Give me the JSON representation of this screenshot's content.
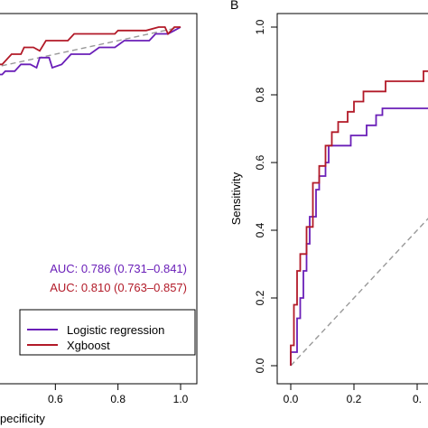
{
  "chart_data": [
    {
      "type": "line",
      "panel_label": "",
      "xlabel": "pecificity",
      "ylabel": "",
      "xlim_visible": [
        0.4,
        1.0
      ],
      "ylim": [
        0,
        1
      ],
      "x_reversed": false,
      "x_ticks": [
        {
          "value": 0.6,
          "label": "0.6"
        },
        {
          "value": 0.8,
          "label": "0.8"
        },
        {
          "value": 1.0,
          "label": "1.0"
        }
      ],
      "y_ticks": [],
      "diagonal": {
        "from": [
          0.4,
          0.4
        ],
        "to": [
          1.0,
          1.0
        ],
        "style": "dashed",
        "color": "#999999"
      },
      "series": [
        {
          "name": "Logistic regression",
          "color": "#6a1fb8",
          "points": [
            [
              0.4,
              0.84
            ],
            [
              0.41,
              0.86
            ],
            [
              0.43,
              0.86
            ],
            [
              0.44,
              0.87
            ],
            [
              0.47,
              0.87
            ],
            [
              0.49,
              0.89
            ],
            [
              0.52,
              0.89
            ],
            [
              0.54,
              0.88
            ],
            [
              0.55,
              0.91
            ],
            [
              0.58,
              0.91
            ],
            [
              0.59,
              0.88
            ],
            [
              0.62,
              0.89
            ],
            [
              0.65,
              0.92
            ],
            [
              0.71,
              0.92
            ],
            [
              0.74,
              0.94
            ],
            [
              0.79,
              0.94
            ],
            [
              0.82,
              0.96
            ],
            [
              0.9,
              0.96
            ],
            [
              0.92,
              0.98
            ],
            [
              0.96,
              0.98
            ],
            [
              0.98,
              0.99
            ],
            [
              1.0,
              1.0
            ]
          ]
        },
        {
          "name": "Xgboost",
          "color": "#b21a28",
          "points": [
            [
              0.4,
              0.89
            ],
            [
              0.43,
              0.89
            ],
            [
              0.46,
              0.92
            ],
            [
              0.49,
              0.92
            ],
            [
              0.5,
              0.94
            ],
            [
              0.53,
              0.94
            ],
            [
              0.55,
              0.93
            ],
            [
              0.57,
              0.96
            ],
            [
              0.64,
              0.96
            ],
            [
              0.66,
              0.98
            ],
            [
              0.79,
              0.98
            ],
            [
              0.8,
              0.99
            ],
            [
              0.84,
              0.99
            ],
            [
              0.88,
              0.99
            ],
            [
              0.89,
              0.99
            ],
            [
              0.93,
              1.0
            ],
            [
              0.95,
              1.0
            ],
            [
              0.96,
              0.98
            ],
            [
              0.98,
              1.0
            ],
            [
              1.0,
              1.0
            ]
          ]
        }
      ],
      "annotations": [
        {
          "text": "AUC: 0.786 (0.731–0.841)",
          "color": "#6a1fb8"
        },
        {
          "text": "AUC: 0.810 (0.763–0.857)",
          "color": "#b21a28"
        }
      ],
      "legend": {
        "placement": "bottom-right",
        "entries": [
          "Logistic regression",
          "Xgboost"
        ]
      }
    },
    {
      "type": "line",
      "panel_label": "B",
      "xlabel": "",
      "ylabel": "Sensitivity",
      "xlim": [
        0,
        1
      ],
      "ylim": [
        0,
        1
      ],
      "x_ticks": [
        {
          "value": 0.0,
          "label": "0.0"
        },
        {
          "value": 0.2,
          "label": "0.2"
        },
        {
          "value": 0.4,
          "label": "0."
        }
      ],
      "y_ticks": [
        {
          "value": 0.0,
          "label": "0.0"
        },
        {
          "value": 0.2,
          "label": "0.2"
        },
        {
          "value": 0.4,
          "label": "0.4"
        },
        {
          "value": 0.6,
          "label": "0.6"
        },
        {
          "value": 0.8,
          "label": "0.8"
        },
        {
          "value": 1.0,
          "label": "1.0"
        }
      ],
      "diagonal": {
        "from": [
          0,
          0
        ],
        "to": [
          1,
          1
        ],
        "style": "dashed",
        "color": "#999999"
      },
      "series": [
        {
          "name": "Logistic regression",
          "color": "#6a1fb8",
          "points": [
            [
              0.0,
              0.0
            ],
            [
              0.0,
              0.04
            ],
            [
              0.02,
              0.04
            ],
            [
              0.02,
              0.14
            ],
            [
              0.03,
              0.14
            ],
            [
              0.03,
              0.2
            ],
            [
              0.04,
              0.2
            ],
            [
              0.04,
              0.28
            ],
            [
              0.05,
              0.28
            ],
            [
              0.05,
              0.36
            ],
            [
              0.06,
              0.36
            ],
            [
              0.06,
              0.44
            ],
            [
              0.08,
              0.44
            ],
            [
              0.08,
              0.52
            ],
            [
              0.09,
              0.52
            ],
            [
              0.09,
              0.56
            ],
            [
              0.11,
              0.56
            ],
            [
              0.11,
              0.6
            ],
            [
              0.12,
              0.6
            ],
            [
              0.12,
              0.65
            ],
            [
              0.19,
              0.65
            ],
            [
              0.19,
              0.68
            ],
            [
              0.24,
              0.68
            ],
            [
              0.24,
              0.71
            ],
            [
              0.27,
              0.71
            ],
            [
              0.27,
              0.74
            ],
            [
              0.29,
              0.74
            ],
            [
              0.29,
              0.76
            ],
            [
              0.45,
              0.76
            ]
          ]
        },
        {
          "name": "Xgboost",
          "color": "#b21a28",
          "points": [
            [
              0.0,
              0.0
            ],
            [
              0.0,
              0.06
            ],
            [
              0.01,
              0.06
            ],
            [
              0.01,
              0.18
            ],
            [
              0.02,
              0.18
            ],
            [
              0.02,
              0.28
            ],
            [
              0.03,
              0.28
            ],
            [
              0.03,
              0.33
            ],
            [
              0.05,
              0.33
            ],
            [
              0.05,
              0.41
            ],
            [
              0.07,
              0.41
            ],
            [
              0.07,
              0.54
            ],
            [
              0.09,
              0.54
            ],
            [
              0.09,
              0.59
            ],
            [
              0.11,
              0.59
            ],
            [
              0.11,
              0.65
            ],
            [
              0.13,
              0.65
            ],
            [
              0.13,
              0.69
            ],
            [
              0.15,
              0.69
            ],
            [
              0.15,
              0.72
            ],
            [
              0.18,
              0.72
            ],
            [
              0.18,
              0.75
            ],
            [
              0.2,
              0.75
            ],
            [
              0.2,
              0.78
            ],
            [
              0.23,
              0.78
            ],
            [
              0.23,
              0.81
            ],
            [
              0.3,
              0.81
            ],
            [
              0.3,
              0.84
            ],
            [
              0.42,
              0.84
            ],
            [
              0.42,
              0.87
            ],
            [
              0.45,
              0.87
            ]
          ]
        }
      ]
    }
  ]
}
